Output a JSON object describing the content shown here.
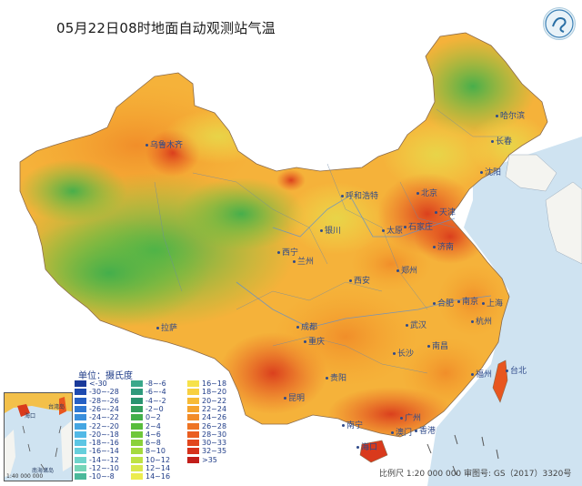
{
  "title": "05月22日08时地面自动观测站气温",
  "legend": {
    "title": "单位：摄氏度",
    "items": [
      {
        "label": "<-30",
        "color": "#1a3a9a"
      },
      {
        "label": "-30~-28",
        "color": "#1f4bb0"
      },
      {
        "label": "-28~-26",
        "color": "#2660c4"
      },
      {
        "label": "-26~-24",
        "color": "#2f78d2"
      },
      {
        "label": "-24~-22",
        "color": "#3a8fdc"
      },
      {
        "label": "-22~-20",
        "color": "#45a6e2"
      },
      {
        "label": "-20~-18",
        "color": "#52b9e6"
      },
      {
        "label": "-18~-16",
        "color": "#5cc6e4"
      },
      {
        "label": "-16~-14",
        "color": "#66cfdc"
      },
      {
        "label": "-14~-12",
        "color": "#6fd4cc"
      },
      {
        "label": "-12~-10",
        "color": "#76d5b8"
      },
      {
        "label": "-10~-8",
        "color": "#4bb89a"
      },
      {
        "label": "-8~-6",
        "color": "#3aa88a"
      },
      {
        "label": "-6~-4",
        "color": "#2f9a7c"
      },
      {
        "label": "-4~-2",
        "color": "#2a9470"
      },
      {
        "label": "-2~0",
        "color": "#34a05e"
      },
      {
        "label": "0~2",
        "color": "#43b04a"
      },
      {
        "label": "2~4",
        "color": "#58bd3c"
      },
      {
        "label": "4~6",
        "color": "#6fc73a"
      },
      {
        "label": "6~8",
        "color": "#8ad13a"
      },
      {
        "label": "8~10",
        "color": "#a4da3e"
      },
      {
        "label": "10~12",
        "color": "#bde245"
      },
      {
        "label": "12~14",
        "color": "#d8e84c"
      },
      {
        "label": "14~16",
        "color": "#ecec4f"
      },
      {
        "label": "16~18",
        "color": "#f6e24a"
      },
      {
        "label": "18~20",
        "color": "#f8d040"
      },
      {
        "label": "20~22",
        "color": "#f7bb36"
      },
      {
        "label": "22~24",
        "color": "#f5a42e"
      },
      {
        "label": "24~26",
        "color": "#f28c29"
      },
      {
        "label": "26~28",
        "color": "#ee7424"
      },
      {
        "label": "28~30",
        "color": "#ea5d20"
      },
      {
        "label": "30~33",
        "color": "#e2461e"
      },
      {
        "label": "32~35",
        "color": "#d6321c"
      },
      {
        "label": ">35",
        "color": "#c21e1a"
      }
    ]
  },
  "cities": [
    {
      "name": "乌鲁木齐"
    },
    {
      "name": "哈尔滨"
    },
    {
      "name": "长春"
    },
    {
      "name": "沈阳"
    },
    {
      "name": "呼和浩特"
    },
    {
      "name": "北京"
    },
    {
      "name": "天津"
    },
    {
      "name": "石家庄"
    },
    {
      "name": "太原"
    },
    {
      "name": "银川"
    },
    {
      "name": "西宁"
    },
    {
      "name": "兰州"
    },
    {
      "name": "济南"
    },
    {
      "name": "郑州"
    },
    {
      "name": "西安"
    },
    {
      "name": "拉萨"
    },
    {
      "name": "成都"
    },
    {
      "name": "重庆"
    },
    {
      "name": "武汉"
    },
    {
      "name": "合肥"
    },
    {
      "name": "南京"
    },
    {
      "name": "上海"
    },
    {
      "name": "杭州"
    },
    {
      "name": "长沙"
    },
    {
      "name": "南昌"
    },
    {
      "name": "贵阳"
    },
    {
      "name": "昆明"
    },
    {
      "name": "南宁"
    },
    {
      "name": "广州"
    },
    {
      "name": "澳门"
    },
    {
      "name": "香港"
    },
    {
      "name": "台北"
    },
    {
      "name": "福州"
    },
    {
      "name": "海口"
    }
  ],
  "inset": {
    "scale": "1:40 000 000",
    "labels": [
      "海口",
      "台湾岛",
      "南海诸岛"
    ]
  },
  "footer": {
    "scale": "比例尺 1:20 000 000",
    "review": "审图号: GS（2017）3320号"
  },
  "colors": {
    "sea": "#cfe3f1",
    "hot": "#e8471f",
    "warm": "#f5a42e",
    "mild": "#e8e24c",
    "cool": "#6cc63a"
  }
}
